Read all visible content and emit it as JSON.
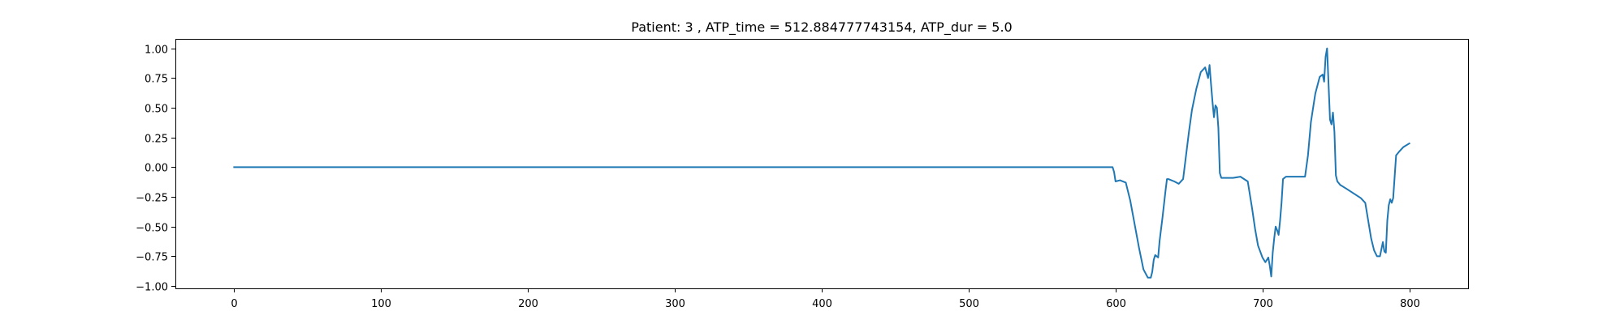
{
  "chart_data": {
    "type": "line",
    "title": "Patient: 3 , ATP_time = 512.884777743154, ATP_dur = 5.0",
    "xlabel": "",
    "ylabel": "",
    "xlim": [
      -40,
      840
    ],
    "ylim": [
      -1.02,
      1.08
    ],
    "xticks": [
      0,
      100,
      200,
      300,
      400,
      500,
      600,
      700,
      800
    ],
    "yticks": [
      -1.0,
      -0.75,
      -0.5,
      -0.25,
      0.0,
      0.25,
      0.5,
      0.75,
      1.0
    ],
    "ytick_labels": [
      "−1.00",
      "−0.75",
      "−0.50",
      "−0.25",
      "0.00",
      "0.25",
      "0.50",
      "0.75",
      "1.00"
    ],
    "grid": false,
    "series": [
      {
        "color": "#1f77b4",
        "x": [
          0,
          100,
          200,
          300,
          400,
          500,
          598,
          599,
          600,
          603,
          607,
          610,
          613,
          616,
          619,
          622,
          624,
          625,
          626,
          627,
          629,
          630,
          632,
          634,
          635,
          636,
          638,
          640,
          643,
          646,
          648,
          650,
          652,
          655,
          658,
          661,
          663,
          664,
          665,
          666,
          667,
          668,
          669,
          670,
          671,
          672,
          673,
          674,
          676,
          680,
          685,
          690,
          693,
          695,
          697,
          700,
          702,
          704,
          705,
          706,
          707,
          708,
          709,
          710,
          711,
          712,
          713,
          714,
          716,
          720,
          725,
          729,
          731,
          733,
          736,
          739,
          741,
          742,
          743,
          744,
          745,
          746,
          747,
          748,
          749,
          750,
          751,
          753,
          757,
          762,
          767,
          770,
          772,
          774,
          776,
          778,
          780,
          781,
          782,
          783,
          784,
          785,
          786,
          787,
          788,
          789,
          790,
          791,
          793,
          796,
          800
        ],
        "y": [
          0.0,
          0.0,
          0.0,
          0.0,
          0.0,
          0.0,
          0.0,
          -0.04,
          -0.12,
          -0.11,
          -0.13,
          -0.28,
          -0.48,
          -0.68,
          -0.86,
          -0.93,
          -0.93,
          -0.88,
          -0.78,
          -0.74,
          -0.76,
          -0.62,
          -0.42,
          -0.2,
          -0.1,
          -0.1,
          -0.11,
          -0.12,
          -0.14,
          -0.1,
          0.1,
          0.3,
          0.48,
          0.66,
          0.8,
          0.84,
          0.75,
          0.86,
          0.7,
          0.55,
          0.42,
          0.52,
          0.5,
          0.33,
          -0.05,
          -0.09,
          -0.09,
          -0.09,
          -0.09,
          -0.09,
          -0.08,
          -0.12,
          -0.35,
          -0.52,
          -0.66,
          -0.76,
          -0.8,
          -0.76,
          -0.83,
          -0.92,
          -0.72,
          -0.6,
          -0.5,
          -0.53,
          -0.57,
          -0.45,
          -0.3,
          -0.1,
          -0.08,
          -0.08,
          -0.08,
          -0.08,
          0.1,
          0.38,
          0.62,
          0.76,
          0.78,
          0.72,
          0.93,
          1.0,
          0.7,
          0.4,
          0.36,
          0.46,
          0.3,
          -0.07,
          -0.12,
          -0.15,
          -0.18,
          -0.22,
          -0.26,
          -0.3,
          -0.45,
          -0.6,
          -0.7,
          -0.75,
          -0.75,
          -0.69,
          -0.63,
          -0.71,
          -0.72,
          -0.45,
          -0.32,
          -0.27,
          -0.3,
          -0.26,
          -0.08,
          0.1,
          0.13,
          0.17,
          0.2
        ]
      }
    ]
  }
}
